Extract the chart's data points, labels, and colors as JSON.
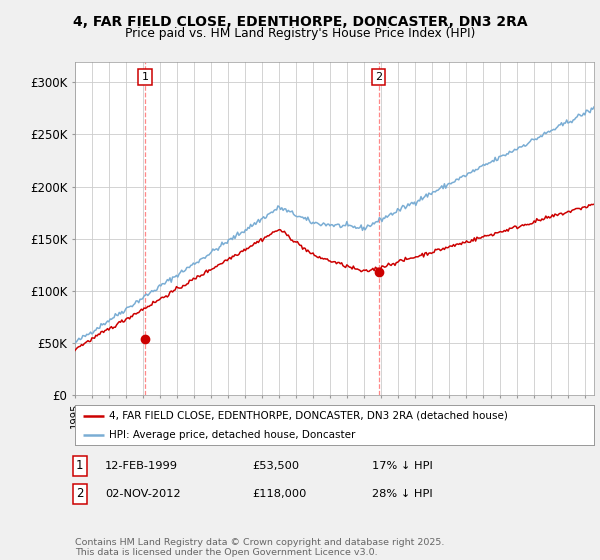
{
  "title_line1": "4, FAR FIELD CLOSE, EDENTHORPE, DONCASTER, DN3 2RA",
  "title_line2": "Price paid vs. HM Land Registry's House Price Index (HPI)",
  "ylim": [
    0,
    320000
  ],
  "yticks": [
    0,
    50000,
    100000,
    150000,
    200000,
    250000,
    300000
  ],
  "ytick_labels": [
    "£0",
    "£50K",
    "£100K",
    "£150K",
    "£200K",
    "£250K",
    "£300K"
  ],
  "background_color": "#f0f0f0",
  "plot_bg_color": "#ffffff",
  "grid_color": "#cccccc",
  "sale1_date": 1999.12,
  "sale1_price": 53500,
  "sale2_date": 2012.84,
  "sale2_price": 118000,
  "sale_color": "#cc0000",
  "hpi_color": "#7aadd4",
  "vline_color": "#ff8888",
  "legend_label_property": "4, FAR FIELD CLOSE, EDENTHORPE, DONCASTER, DN3 2RA (detached house)",
  "legend_label_hpi": "HPI: Average price, detached house, Doncaster",
  "footer_text": "Contains HM Land Registry data © Crown copyright and database right 2025.\nThis data is licensed under the Open Government Licence v3.0."
}
